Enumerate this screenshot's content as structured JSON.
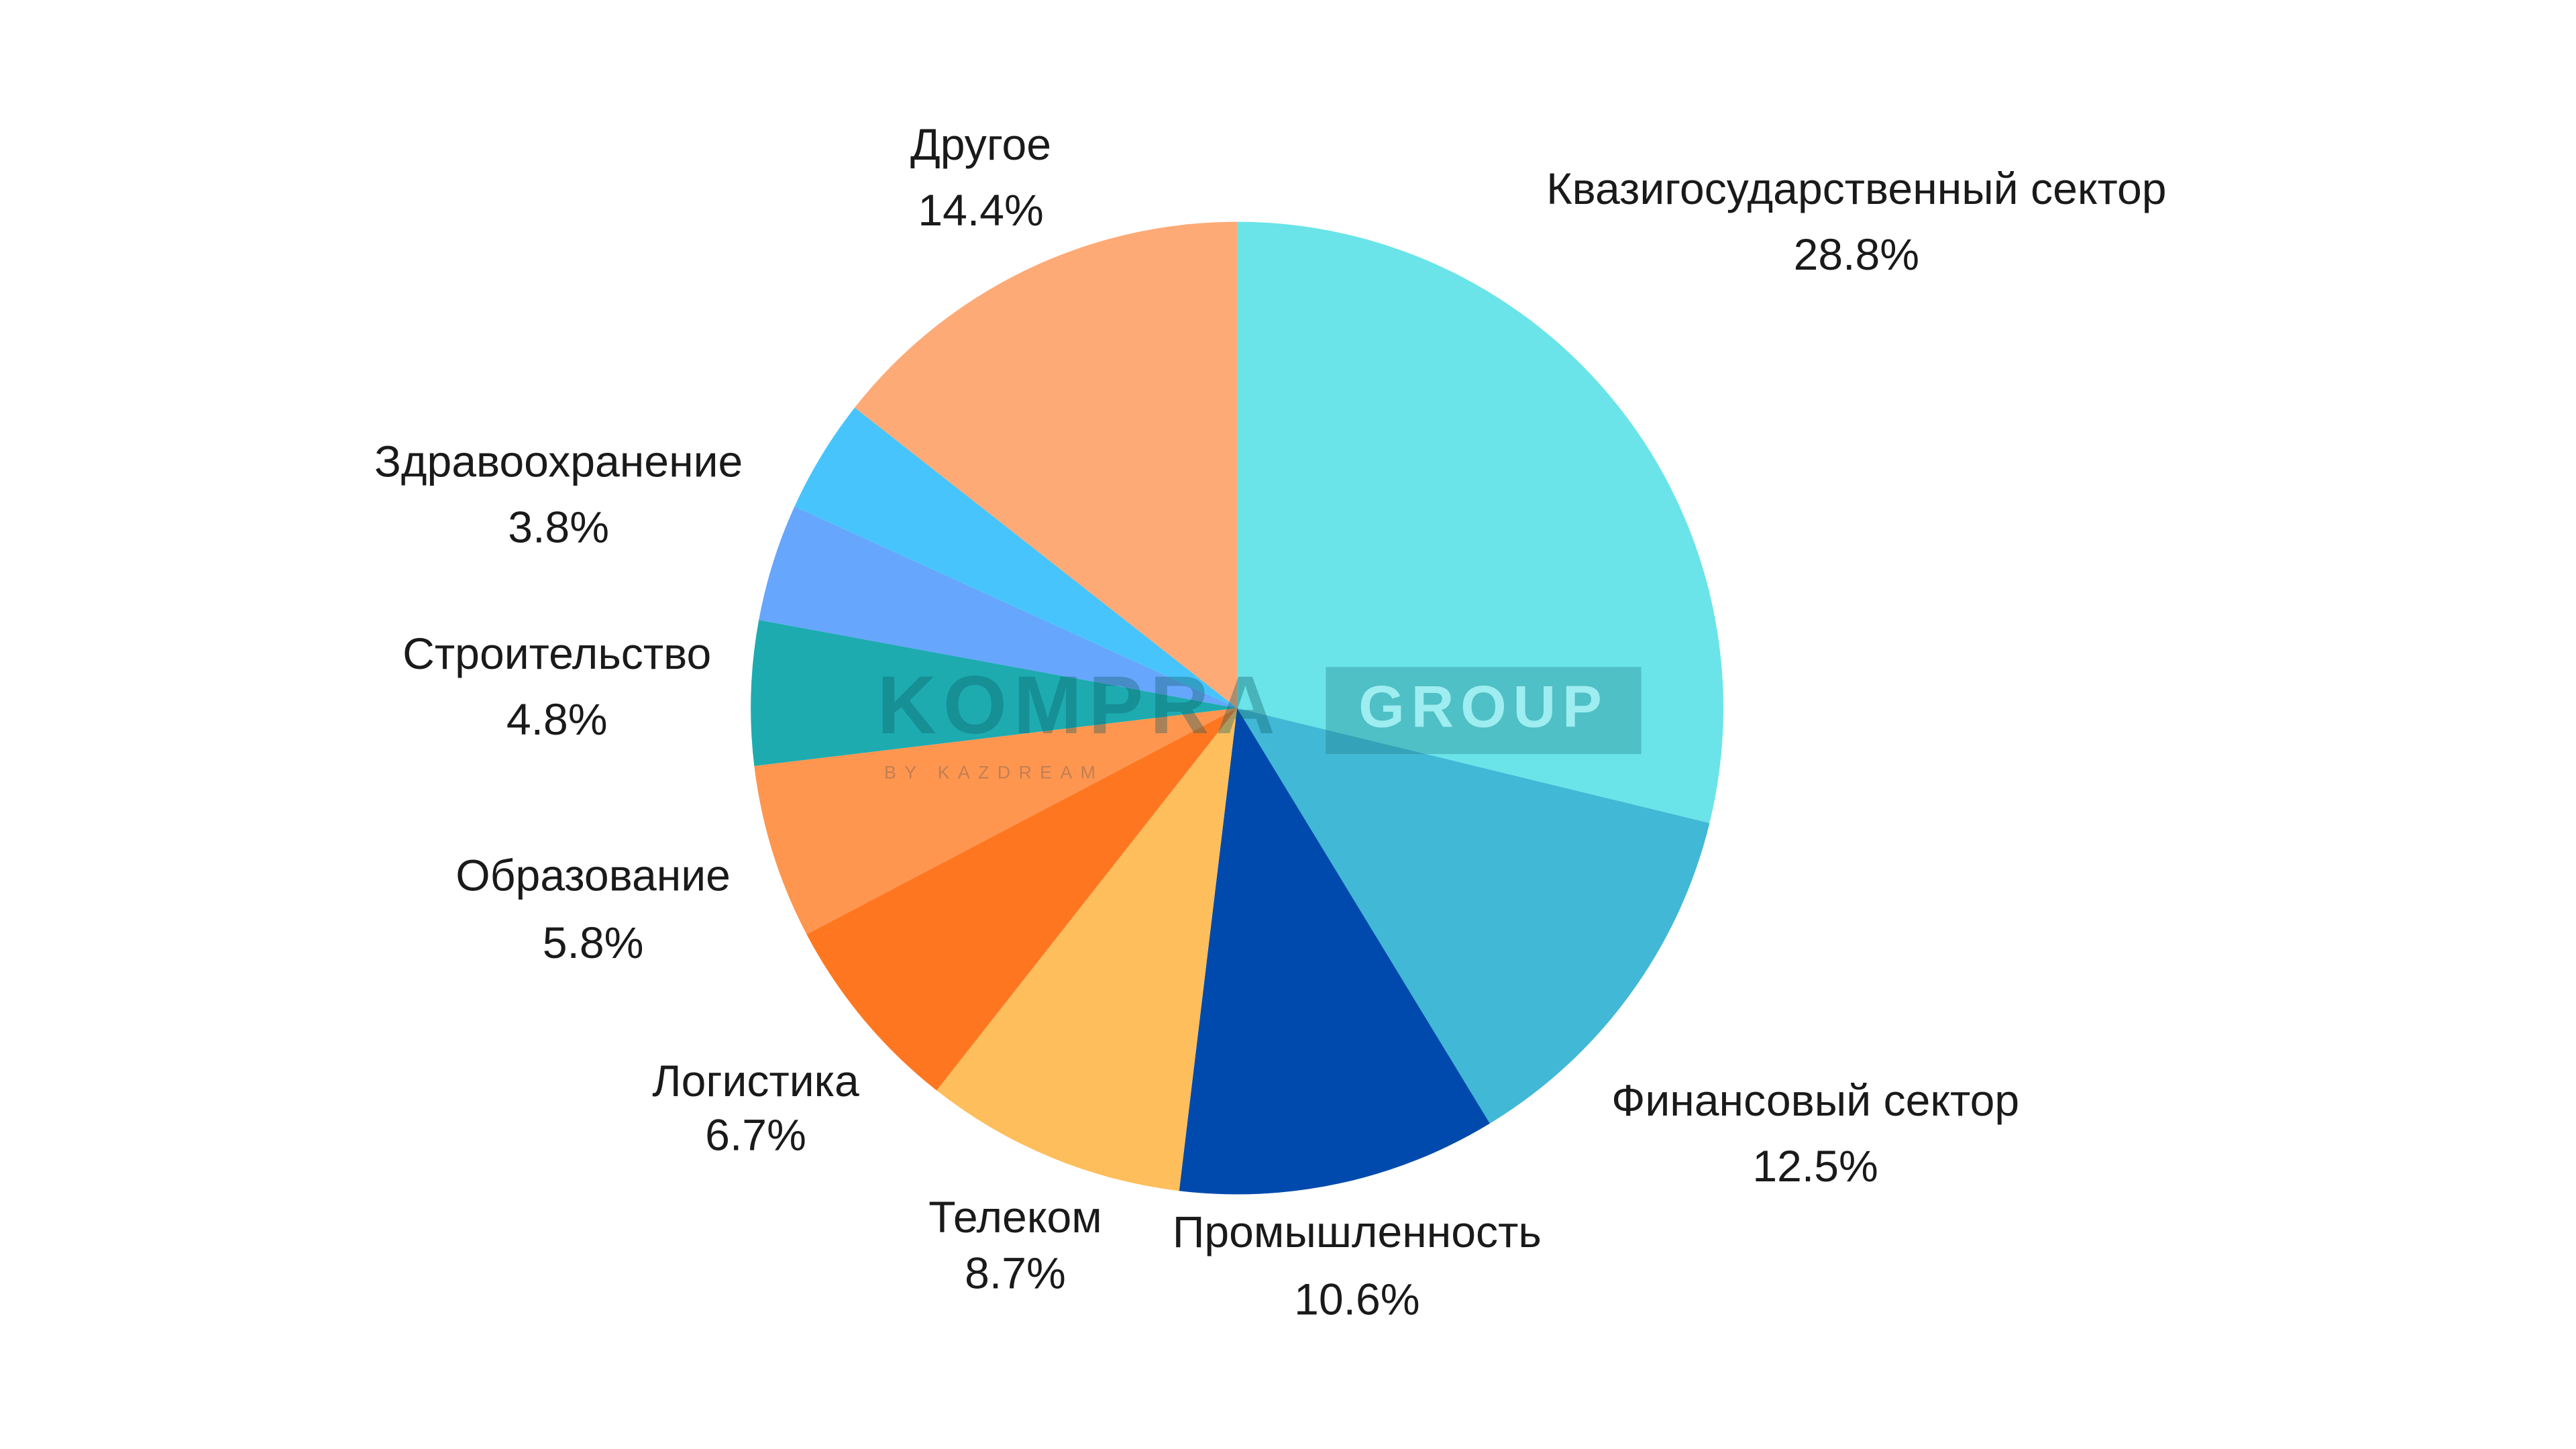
{
  "chart_data": {
    "type": "pie",
    "categories": [
      "Квазигосударственный сектор",
      "Финансовый сектор",
      "Промышленность",
      "Телеком",
      "Логистика",
      "Образование",
      "Строительство",
      null,
      "Здравоохранение",
      "Другое"
    ],
    "values": [
      28.8,
      12.5,
      10.6,
      8.7,
      6.7,
      5.8,
      4.8,
      3.9,
      3.8,
      14.4
    ],
    "value_labels": [
      "28.8%",
      "12.5%",
      "10.6%",
      "8.7%",
      "6.7%",
      "5.8%",
      "4.8%",
      null,
      "3.8%",
      "14.4%"
    ],
    "colors": [
      "#6ae4e8",
      "#41b8d6",
      "#004aad",
      "#febe5c",
      "#fe7720",
      "#fe9650",
      "#1dabb0",
      "#66a6fd",
      "#48c4fd",
      "#feaa76"
    ],
    "watermark": {
      "brand": "KOMPRA",
      "group": "GROUP",
      "tagline": "BY KAZDREAM"
    }
  }
}
